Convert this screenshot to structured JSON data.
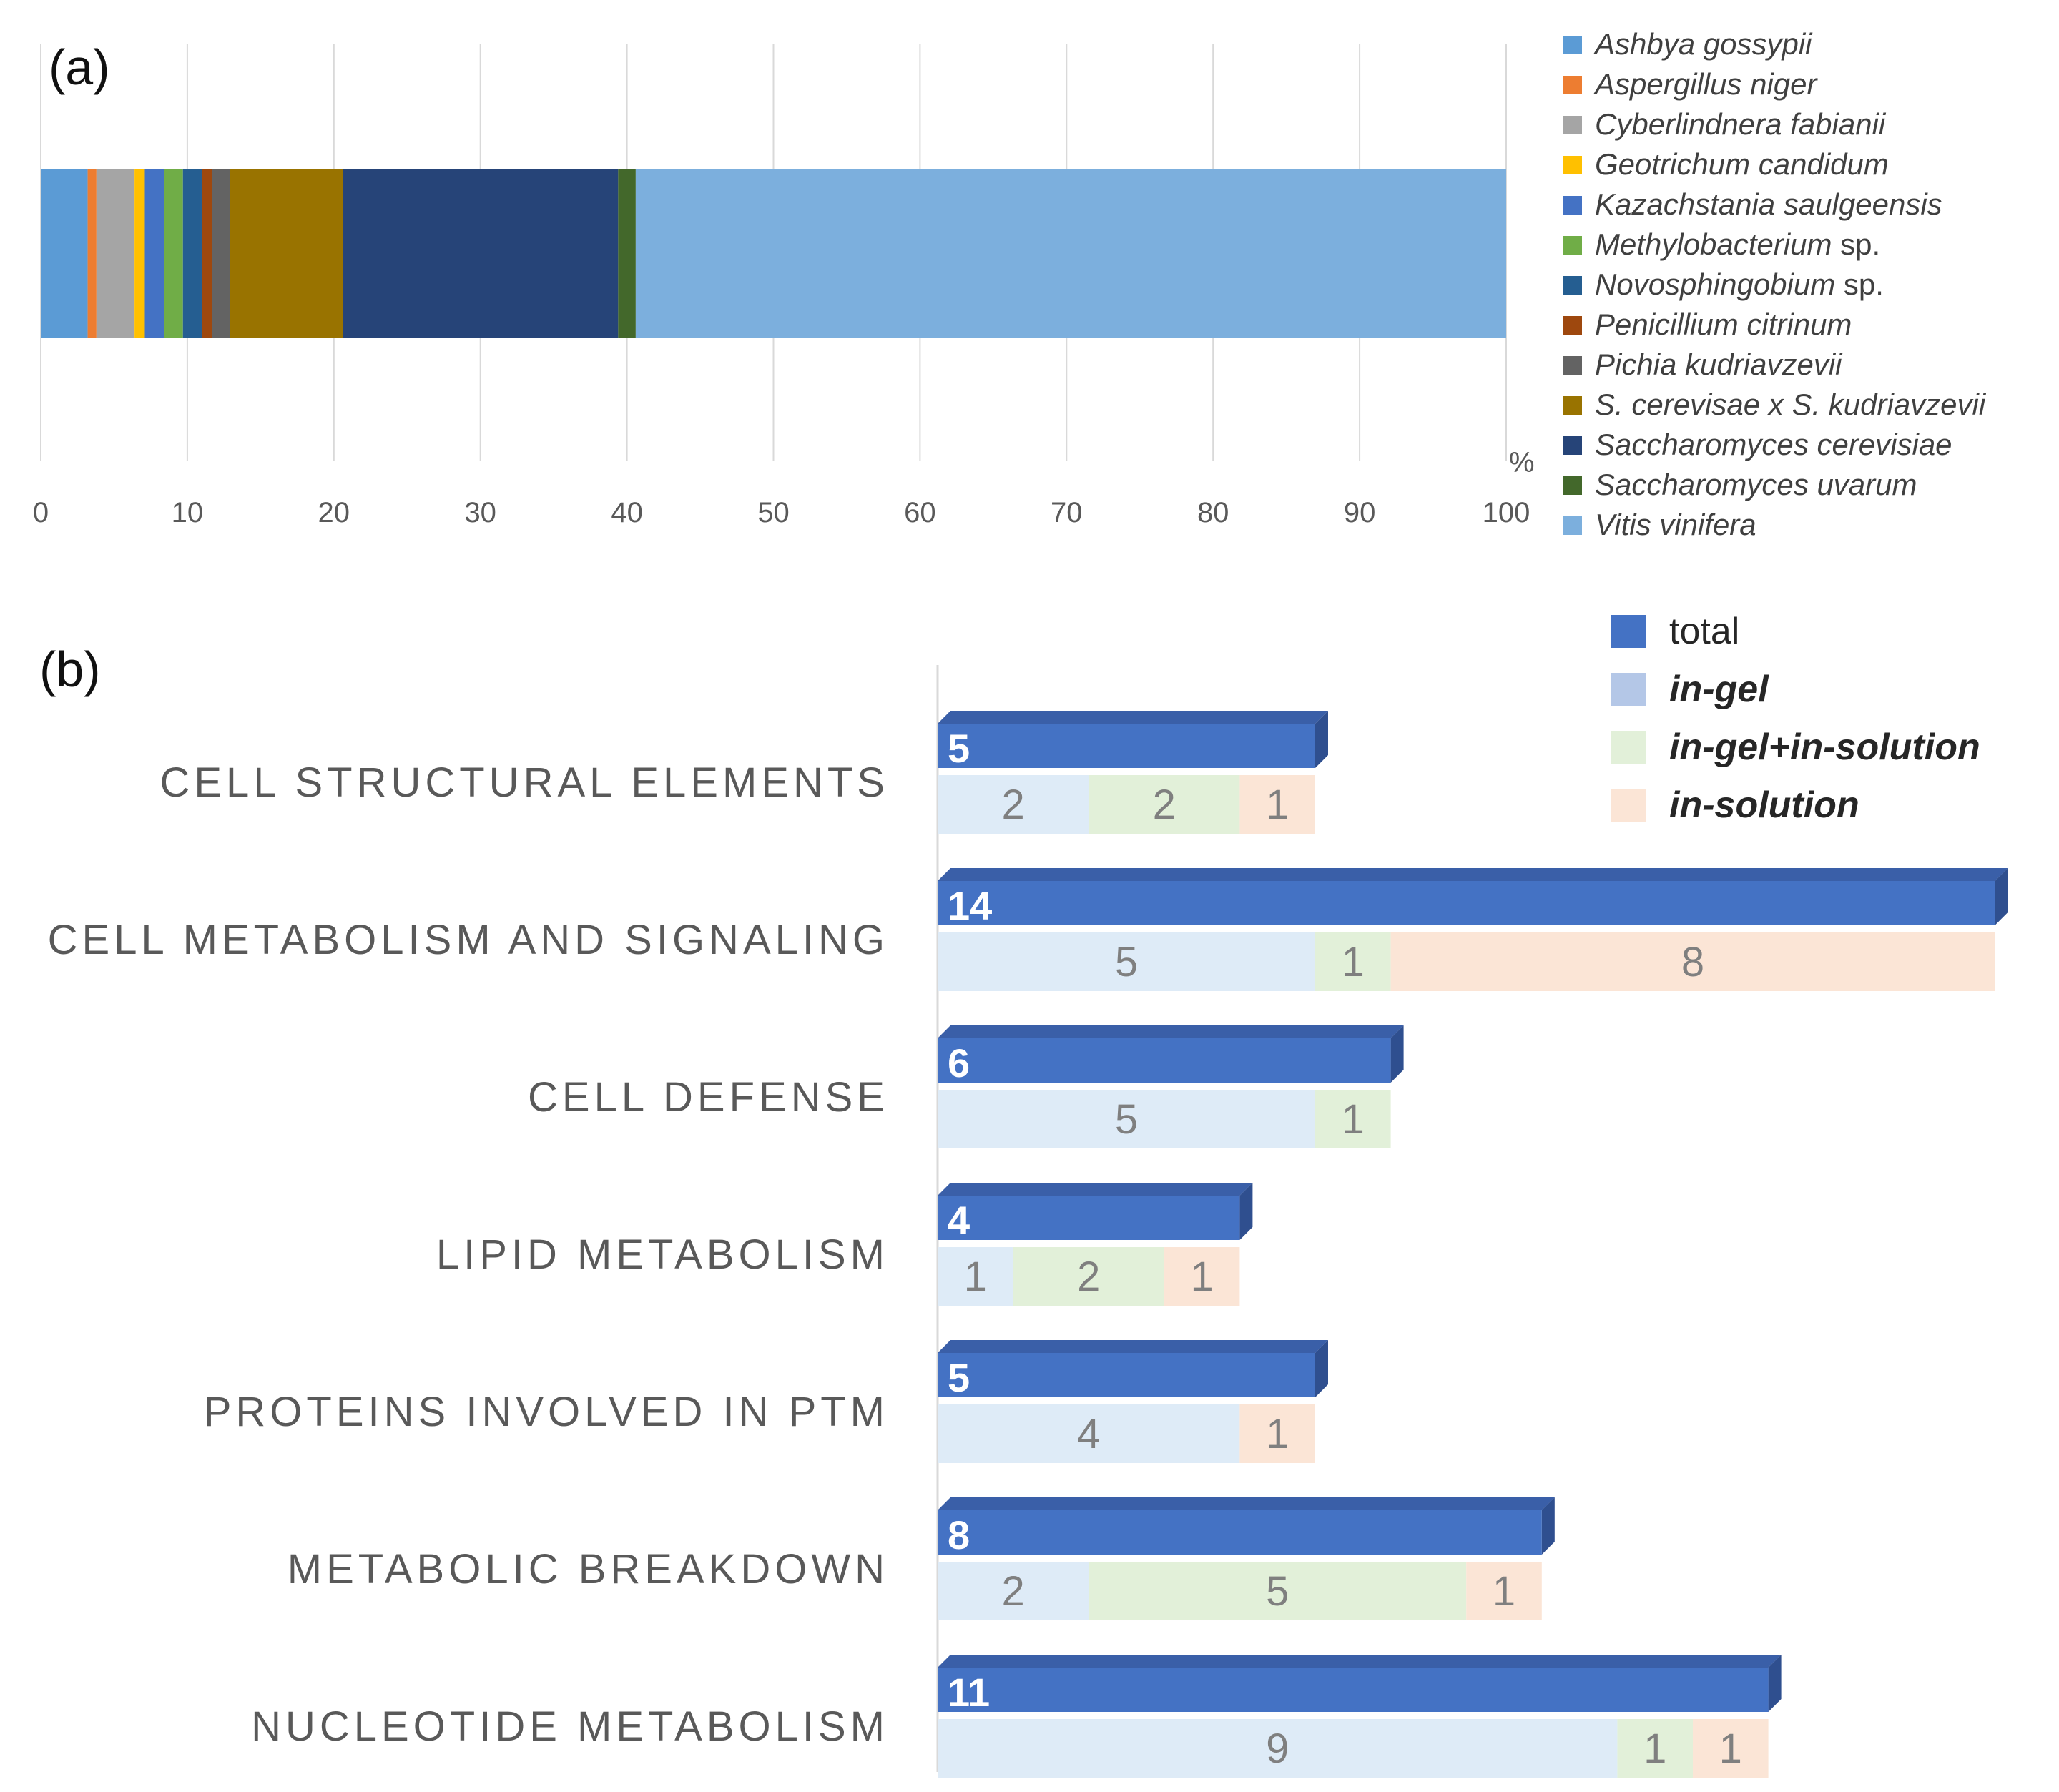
{
  "chart_data": [
    {
      "panel": "(a)",
      "type": "bar",
      "orientation": "horizontal",
      "stacked": true,
      "x_unit": "%",
      "xlim": [
        0,
        100
      ],
      "x_ticks": [
        0,
        10,
        20,
        30,
        40,
        50,
        60,
        70,
        80,
        90,
        100
      ],
      "grid": true,
      "legend_position": "right",
      "series": [
        {
          "name": "Ashbya gossypii",
          "suffix": "",
          "value": 3.2,
          "color": "#5B9BD5"
        },
        {
          "name": "Aspergillus niger",
          "suffix": "",
          "value": 0.6,
          "color": "#ED7D31"
        },
        {
          "name": "Cyberlindnera fabianii",
          "suffix": "",
          "value": 2.6,
          "color": "#A5A5A5"
        },
        {
          "name": "Geotrichum candidum",
          "suffix": "",
          "value": 0.7,
          "color": "#FFC000"
        },
        {
          "name": "Kazachstania saulgeensis",
          "suffix": "",
          "value": 1.3,
          "color": "#4472C4"
        },
        {
          "name": "Methylobacterium",
          "suffix": " sp.",
          "value": 1.3,
          "color": "#70AD47"
        },
        {
          "name": "Novosphingobium",
          "suffix": " sp.",
          "value": 1.3,
          "color": "#255E91"
        },
        {
          "name": "Penicillium citrinum",
          "suffix": "",
          "value": 0.7,
          "color": "#9E480E"
        },
        {
          "name": "Pichia kudriavzevii",
          "suffix": "",
          "value": 1.2,
          "color": "#636363"
        },
        {
          "name": "S. cerevisae x S. kudriavzevii",
          "suffix": "",
          "value": 7.7,
          "color": "#997300"
        },
        {
          "name": "Saccharomyces cerevisiae",
          "suffix": "",
          "value": 18.8,
          "color": "#264478"
        },
        {
          "name": "Saccharomyces uvarum",
          "suffix": "",
          "value": 1.2,
          "color": "#43682B"
        },
        {
          "name": "Vitis vinifera",
          "suffix": "",
          "value": 59.4,
          "color": "#7CAFDD"
        }
      ]
    },
    {
      "panel": "(b)",
      "type": "bar",
      "orientation": "horizontal",
      "legend_position": "top-right",
      "categories": [
        "CELL STRUCTURAL ELEMENTS",
        "CELL METABOLISM AND SIGNALING",
        "CELL DEFENSE",
        "LIPID METABOLISM",
        "PROTEINS INVOLVED IN PTM",
        "METABOLIC BREAKDOWN",
        "NUCLEOTIDE METABOLISM"
      ],
      "series": [
        {
          "name": "total",
          "italic": false,
          "color": "#4472C4",
          "legend_color": "#4472C4",
          "values": [
            5,
            14,
            6,
            4,
            5,
            8,
            11
          ]
        },
        {
          "name": "in-gel",
          "italic": true,
          "color": "#DEEBF7",
          "legend_color": "#B4C7E7",
          "values": [
            2,
            5,
            5,
            1,
            4,
            2,
            9
          ]
        },
        {
          "name": "in-gel+in-solution",
          "italic": true,
          "color": "#E2F0D9",
          "legend_color": "#E2F0D9",
          "values": [
            2,
            1,
            1,
            2,
            0,
            5,
            1
          ]
        },
        {
          "name": "in-solution",
          "italic": true,
          "color": "#FBE5D6",
          "legend_color": "#FBE5D6",
          "values": [
            1,
            8,
            0,
            1,
            1,
            1,
            1
          ]
        }
      ]
    }
  ]
}
